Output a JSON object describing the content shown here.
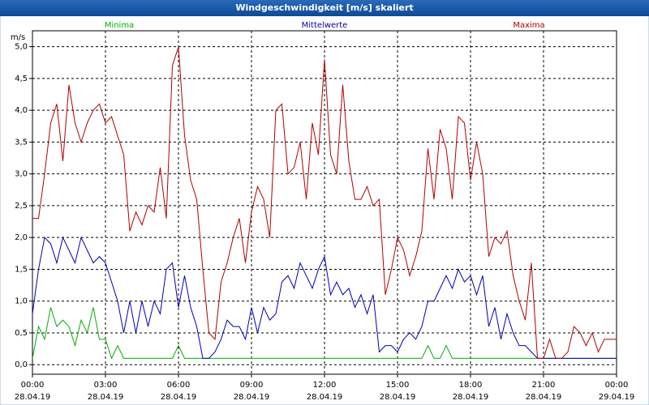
{
  "chart_data": {
    "type": "line",
    "title": "Windgeschwindigkeit [m/s] skaliert",
    "y_label": "m/s",
    "x": [
      0,
      0.25,
      0.5,
      0.75,
      1,
      1.25,
      1.5,
      1.75,
      2,
      2.25,
      2.5,
      2.75,
      3,
      3.25,
      3.5,
      3.75,
      4,
      4.25,
      4.5,
      4.75,
      5,
      5.25,
      5.5,
      5.75,
      6,
      6.25,
      6.5,
      6.75,
      7,
      7.25,
      7.5,
      7.75,
      8,
      8.25,
      8.5,
      8.75,
      9,
      9.25,
      9.5,
      9.75,
      10,
      10.25,
      10.5,
      10.75,
      11,
      11.25,
      11.5,
      11.75,
      12,
      12.25,
      12.5,
      12.75,
      13,
      13.25,
      13.5,
      13.75,
      14,
      14.25,
      14.5,
      14.75,
      15,
      15.25,
      15.5,
      15.75,
      16,
      16.25,
      16.5,
      16.75,
      17,
      17.25,
      17.5,
      17.75,
      18,
      18.25,
      18.5,
      18.75,
      19,
      19.25,
      19.5,
      19.75,
      20,
      20.25,
      20.5,
      20.75,
      21,
      21.25,
      21.5,
      21.75,
      22,
      22.25,
      22.5,
      22.75,
      23,
      23.25,
      23.5,
      23.75,
      24
    ],
    "series": [
      {
        "name": "Minima",
        "color": "#00b000",
        "values": [
          0.1,
          0.6,
          0.4,
          0.9,
          0.6,
          0.7,
          0.6,
          0.3,
          0.7,
          0.5,
          0.9,
          0.4,
          0.4,
          0.1,
          0.3,
          0.1,
          0.1,
          0.1,
          0.1,
          0.1,
          0.1,
          0.1,
          0.1,
          0.1,
          0.3,
          0.1,
          0.1,
          0.1,
          0.1,
          0.1,
          0.1,
          0.1,
          0.1,
          0.1,
          0.1,
          0.1,
          0.1,
          0.1,
          0.1,
          0.1,
          0.1,
          0.1,
          0.1,
          0.1,
          0.1,
          0.1,
          0.1,
          0.1,
          0.1,
          0.1,
          0.1,
          0.1,
          0.1,
          0.1,
          0.1,
          0.1,
          0.1,
          0.1,
          0.1,
          0.1,
          0.1,
          0.1,
          0.1,
          0.1,
          0.1,
          0.3,
          0.1,
          0.1,
          0.3,
          0.1,
          0.1,
          0.1,
          0.1,
          0.1,
          0.1,
          0.1,
          0.1,
          0.1,
          0.1,
          0.1,
          0.1,
          0.1,
          0.1,
          0.1,
          0.1,
          0.1,
          0.1,
          0.1,
          0.1,
          0.1,
          0.1,
          0.1,
          0.1,
          0.1,
          0.1,
          0.1,
          0.1
        ]
      },
      {
        "name": "Mittelwerte",
        "color": "#0000b0",
        "values": [
          0.8,
          1.5,
          2.0,
          1.9,
          1.6,
          2.0,
          1.8,
          1.6,
          2.0,
          1.8,
          1.6,
          1.7,
          1.6,
          1.3,
          1.0,
          0.5,
          1.0,
          0.5,
          1.0,
          0.6,
          1.0,
          0.8,
          1.5,
          1.6,
          0.9,
          1.4,
          0.9,
          0.6,
          0.1,
          0.1,
          0.2,
          0.4,
          0.7,
          0.6,
          0.6,
          0.4,
          0.9,
          0.5,
          0.9,
          0.7,
          0.8,
          1.3,
          1.4,
          1.2,
          1.6,
          1.4,
          1.2,
          1.5,
          1.7,
          1.1,
          1.3,
          1.1,
          1.2,
          0.9,
          1.1,
          0.8,
          1.1,
          0.2,
          0.3,
          0.3,
          0.2,
          0.4,
          0.5,
          0.4,
          0.6,
          1.0,
          1.0,
          1.2,
          1.4,
          1.2,
          1.5,
          1.3,
          1.4,
          1.1,
          1.4,
          0.6,
          0.9,
          0.4,
          0.8,
          0.5,
          0.3,
          0.3,
          0.2,
          0.1,
          0.1,
          0.1,
          0.1,
          0.1,
          0.1,
          0.1,
          0.1,
          0.1,
          0.1,
          0.1,
          0.1,
          0.1,
          0.1
        ]
      },
      {
        "name": "Maxima",
        "color": "#b00000",
        "values": [
          2.3,
          2.3,
          3.0,
          3.8,
          4.1,
          3.2,
          4.4,
          3.8,
          3.5,
          3.8,
          4.0,
          4.1,
          3.8,
          3.9,
          3.6,
          3.3,
          2.1,
          2.4,
          2.2,
          2.5,
          2.4,
          3.1,
          2.3,
          4.7,
          5.0,
          3.6,
          2.9,
          2.6,
          1.5,
          0.5,
          0.4,
          1.3,
          1.6,
          2.0,
          2.3,
          1.6,
          2.4,
          2.8,
          2.6,
          2.0,
          4.0,
          4.1,
          3.0,
          3.1,
          3.5,
          2.6,
          3.8,
          3.3,
          4.8,
          3.3,
          3.0,
          4.4,
          3.2,
          2.6,
          2.6,
          2.8,
          2.5,
          2.6,
          1.1,
          1.5,
          2.0,
          1.8,
          1.4,
          1.7,
          2.1,
          3.4,
          2.6,
          3.7,
          3.4,
          2.6,
          3.9,
          3.8,
          2.9,
          3.5,
          3.0,
          1.7,
          2.0,
          1.9,
          2.1,
          1.4,
          1.0,
          0.7,
          1.6,
          0.1,
          0.1,
          0.4,
          0.1,
          0.1,
          0.2,
          0.6,
          0.5,
          0.3,
          0.5,
          0.2,
          0.4,
          0.4,
          0.4
        ]
      }
    ],
    "xlim": [
      0,
      24
    ],
    "xticks": [
      {
        "value": 0,
        "label": "00:00"
      },
      {
        "value": 3,
        "label": "03:00"
      },
      {
        "value": 6,
        "label": "06:00"
      },
      {
        "value": 9,
        "label": "09:00"
      },
      {
        "value": 12,
        "label": "12:00"
      },
      {
        "value": 15,
        "label": "15:00"
      },
      {
        "value": 18,
        "label": "18:00"
      },
      {
        "value": 21,
        "label": "21:00"
      },
      {
        "value": 24,
        "label": "00:00"
      }
    ],
    "xtick_dates": [
      "28.04.19",
      "28.04.19",
      "28.04.19",
      "28.04.19",
      "28.04.19",
      "28.04.19",
      "28.04.19",
      "28.04.19",
      "29.04.19"
    ],
    "ylim": [
      -0.15,
      5.25
    ],
    "yticks": [
      {
        "value": 0,
        "label": "0,0"
      },
      {
        "value": 0.5,
        "label": "0,5"
      },
      {
        "value": 1,
        "label": "1,0"
      },
      {
        "value": 1.5,
        "label": "1,5"
      },
      {
        "value": 2,
        "label": "2,0"
      },
      {
        "value": 2.5,
        "label": "2,5"
      },
      {
        "value": 3,
        "label": "3,0"
      },
      {
        "value": 3.5,
        "label": "3,5"
      },
      {
        "value": 4,
        "label": "4,0"
      },
      {
        "value": 4.5,
        "label": "4,5"
      },
      {
        "value": 5,
        "label": "5,0"
      }
    ],
    "grid": true
  }
}
